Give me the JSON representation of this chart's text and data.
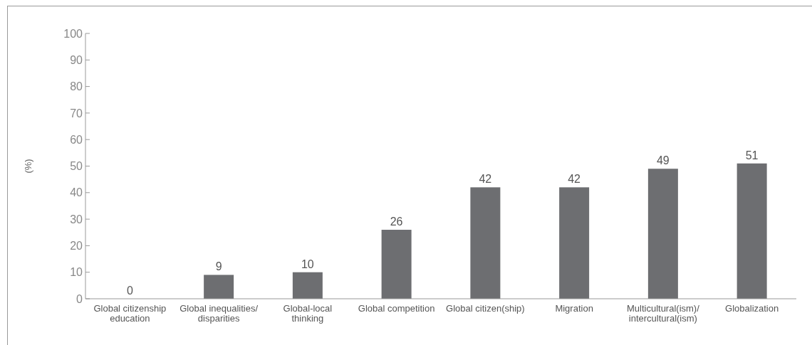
{
  "chart_data": {
    "type": "bar",
    "ylabel": "(%)",
    "categories": [
      "Global citizenship education",
      "Global inequalities/ disparities",
      "Global-local thinking",
      "Global competition",
      "Global citizen(ship)",
      "Migration",
      "Multicultural(ism)/ intercultural(ism)",
      "Globalization"
    ],
    "values": [
      0,
      9,
      10,
      26,
      42,
      42,
      49,
      51
    ],
    "color": "#6d6e71",
    "ylim": [
      0,
      100
    ],
    "yticks": [
      0,
      10,
      20,
      30,
      40,
      50,
      60,
      70,
      80,
      90,
      100
    ],
    "data_labels": true
  }
}
